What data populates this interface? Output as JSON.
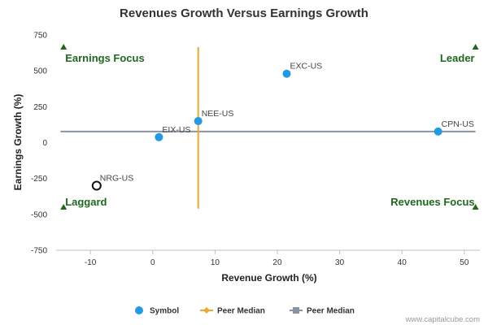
{
  "chart_data": {
    "type": "scatter",
    "title": "Revenues Growth Versus Earnings Growth",
    "xlabel": "Revenue Growth (%)",
    "ylabel": "Earnings Growth (%)",
    "xlim": [
      -15.5,
      52.5
    ],
    "ylim": [
      -750,
      750
    ],
    "x_ticks": [
      -10,
      0,
      10,
      20,
      30,
      40,
      50
    ],
    "x_tick_labels": [
      "-10",
      "0",
      "10",
      "20",
      "30",
      "40",
      "50"
    ],
    "y_ticks": [
      750,
      500,
      250,
      0,
      -250,
      -500,
      -750
    ],
    "y_tick_labels": [
      "750",
      "500",
      "250",
      "0",
      "-250",
      "-500",
      "-750"
    ],
    "grid": false,
    "points": [
      {
        "label": "EXC-US",
        "x": 21.5,
        "y": 480,
        "style": "filled"
      },
      {
        "label": "NEE-US",
        "x": 7.3,
        "y": 150,
        "style": "filled"
      },
      {
        "label": "EIX-US",
        "x": 1.0,
        "y": 38,
        "style": "filled"
      },
      {
        "label": "CPN-US",
        "x": 45.8,
        "y": 77,
        "style": "filled"
      },
      {
        "label": "NRG-US",
        "x": -9.0,
        "y": -300,
        "style": "open"
      }
    ],
    "peer_median_revenue": {
      "x": 7.3,
      "y_range": [
        -460,
        665
      ]
    },
    "peer_median_earnings": {
      "y": 77,
      "x_range": [
        -14.8,
        51.8
      ]
    },
    "quadrants": [
      {
        "label": "Earnings Focus",
        "x": -14.3,
        "y": 665
      },
      {
        "label": "Leader",
        "x": 51.8,
        "y": 665
      },
      {
        "label": "Laggard",
        "x": -14.3,
        "y": -450
      },
      {
        "label": "Revenues Focus",
        "x": 51.8,
        "y": -450
      }
    ],
    "legend": [
      {
        "name": "Symbol",
        "kind": "dot"
      },
      {
        "name": "Peer Median",
        "kind": "diamond"
      },
      {
        "name": "Peer Median",
        "kind": "square"
      }
    ],
    "legend_position": "bottom-center",
    "credit": "www.capitalcube.com"
  },
  "colors": {
    "symbol": "#1e9be8",
    "revenue_median": "#f5a623",
    "earnings_median": "#8893a3",
    "quadrant_text": "#1a6b1a",
    "open_marker": "#111111"
  }
}
